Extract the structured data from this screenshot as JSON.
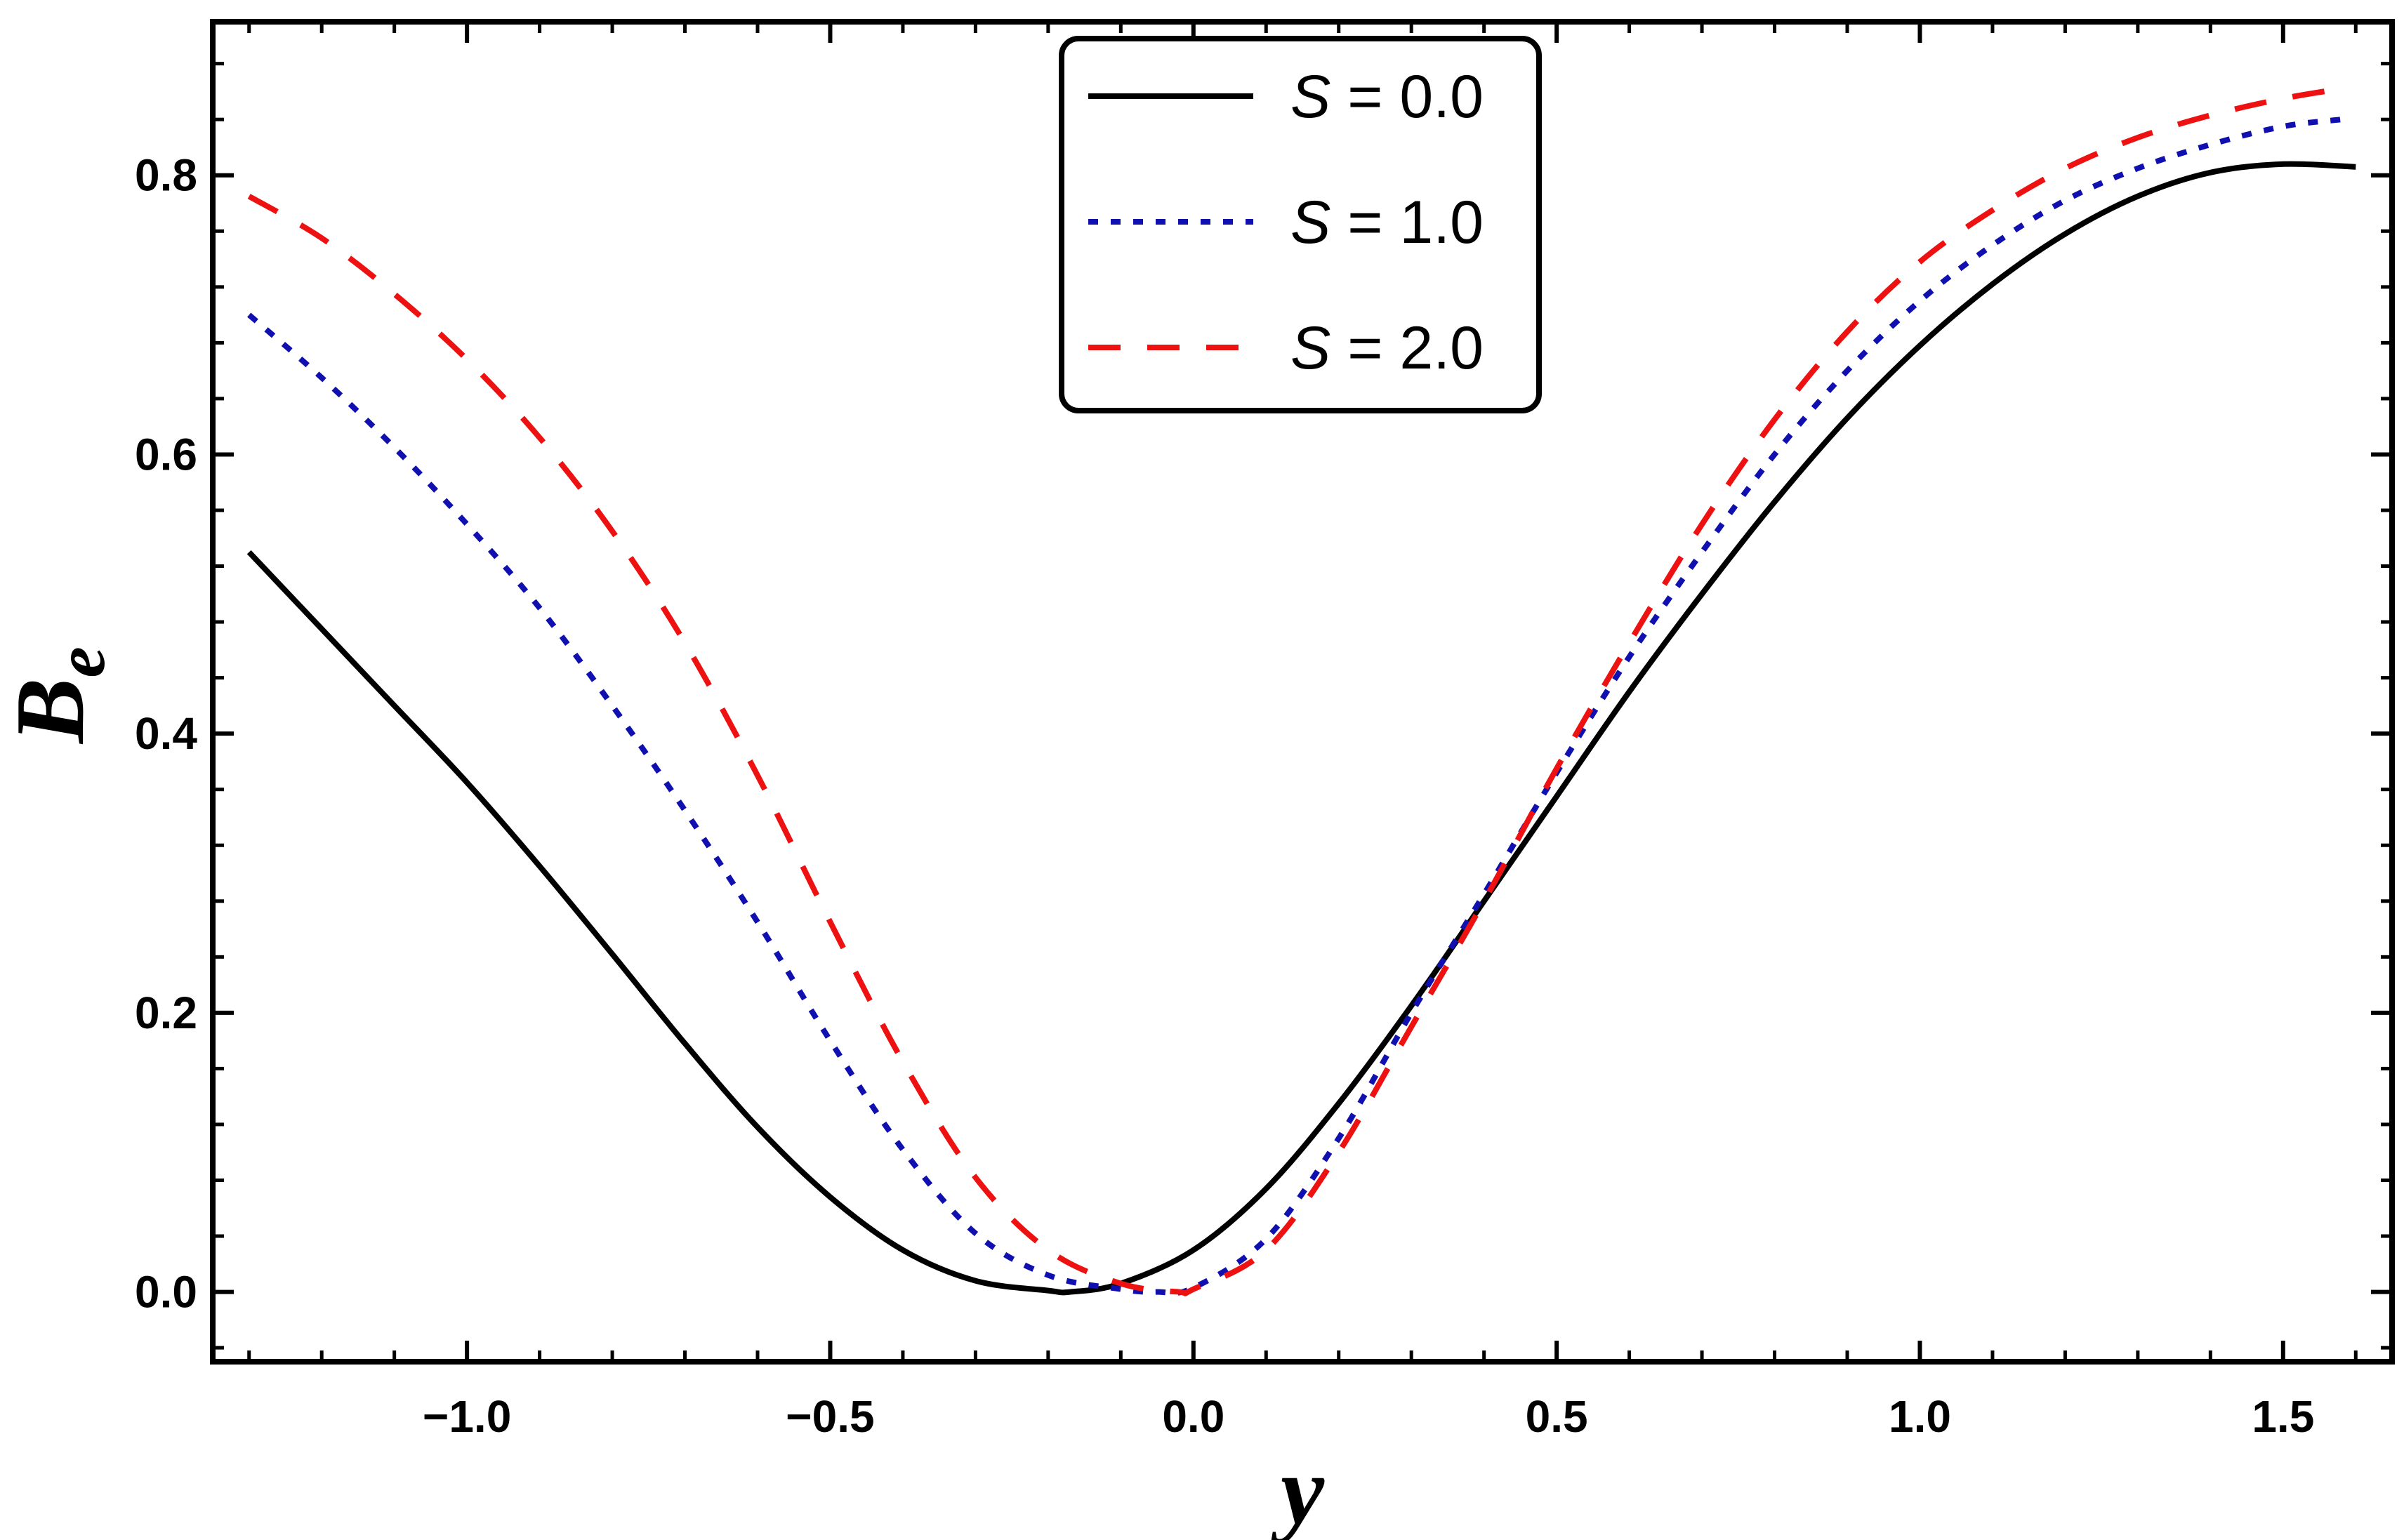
{
  "chart_data": {
    "type": "line",
    "title": "",
    "xlabel": "y",
    "ylabel_main": "B",
    "ylabel_sub": "e",
    "xlim": [
      -1.35,
      1.65
    ],
    "ylim": [
      -0.05,
      0.91
    ],
    "xticks": [
      -1.0,
      -0.5,
      0.0,
      0.5,
      1.0,
      1.5
    ],
    "xtick_labels": [
      "−1.0",
      "−0.5",
      "0.0",
      "0.5",
      "1.0",
      "1.5"
    ],
    "yticks": [
      0.0,
      0.2,
      0.4,
      0.6,
      0.8
    ],
    "ytick_labels": [
      "0.0",
      "0.2",
      "0.4",
      "0.6",
      "0.8"
    ],
    "legend_position": "top-center",
    "series": [
      {
        "name": "S = 0.0",
        "legend_symbol": "S",
        "legend_rest": " = 0.0",
        "color": "#000000",
        "style": "solid",
        "x": [
          -1.3,
          -1.2,
          -1.1,
          -1.0,
          -0.9,
          -0.8,
          -0.7,
          -0.6,
          -0.5,
          -0.4,
          -0.3,
          -0.2,
          -0.17,
          -0.1,
          0.0,
          0.1,
          0.2,
          0.3,
          0.4,
          0.5,
          0.6,
          0.7,
          0.8,
          0.9,
          1.0,
          1.1,
          1.2,
          1.3,
          1.4,
          1.5,
          1.6
        ],
        "y": [
          0.53,
          0.475,
          0.42,
          0.365,
          0.305,
          0.242,
          0.178,
          0.118,
          0.068,
          0.03,
          0.008,
          0.001,
          0.0,
          0.006,
          0.03,
          0.074,
          0.135,
          0.205,
          0.28,
          0.355,
          0.43,
          0.5,
          0.566,
          0.626,
          0.678,
          0.722,
          0.758,
          0.785,
          0.802,
          0.808,
          0.806
        ]
      },
      {
        "name": "S = 1.0",
        "legend_symbol": "S",
        "legend_rest": " = 1.0",
        "color": "#1010b0",
        "style": "dotted",
        "x": [
          -1.3,
          -1.2,
          -1.1,
          -1.0,
          -0.9,
          -0.8,
          -0.7,
          -0.6,
          -0.5,
          -0.4,
          -0.3,
          -0.2,
          -0.1,
          -0.05,
          0.0,
          0.1,
          0.2,
          0.3,
          0.4,
          0.5,
          0.6,
          0.7,
          0.8,
          0.9,
          1.0,
          1.1,
          1.2,
          1.3,
          1.4,
          1.5,
          1.58
        ],
        "y": [
          0.7,
          0.655,
          0.605,
          0.55,
          0.49,
          0.42,
          0.345,
          0.265,
          0.18,
          0.102,
          0.042,
          0.012,
          0.002,
          0.0,
          0.003,
          0.038,
          0.11,
          0.2,
          0.285,
          0.372,
          0.455,
          0.53,
          0.6,
          0.66,
          0.71,
          0.75,
          0.782,
          0.805,
          0.822,
          0.835,
          0.84
        ]
      },
      {
        "name": "S = 2.0",
        "legend_symbol": "S",
        "legend_rest": " = 2.0",
        "color": "#ee1111",
        "style": "dashed",
        "x": [
          -1.3,
          -1.2,
          -1.1,
          -1.0,
          -0.9,
          -0.8,
          -0.7,
          -0.6,
          -0.5,
          -0.4,
          -0.3,
          -0.2,
          -0.1,
          -0.02,
          0.0,
          0.1,
          0.2,
          0.3,
          0.4,
          0.5,
          0.6,
          0.7,
          0.8,
          0.9,
          1.0,
          1.1,
          1.2,
          1.3,
          1.4,
          1.5,
          1.58
        ],
        "y": [
          0.785,
          0.755,
          0.715,
          0.668,
          0.612,
          0.545,
          0.465,
          0.37,
          0.265,
          0.165,
          0.082,
          0.03,
          0.006,
          0.0,
          0.002,
          0.03,
          0.1,
          0.19,
          0.28,
          0.375,
          0.465,
          0.55,
          0.625,
          0.688,
          0.738,
          0.775,
          0.805,
          0.827,
          0.843,
          0.855,
          0.862
        ]
      }
    ]
  }
}
